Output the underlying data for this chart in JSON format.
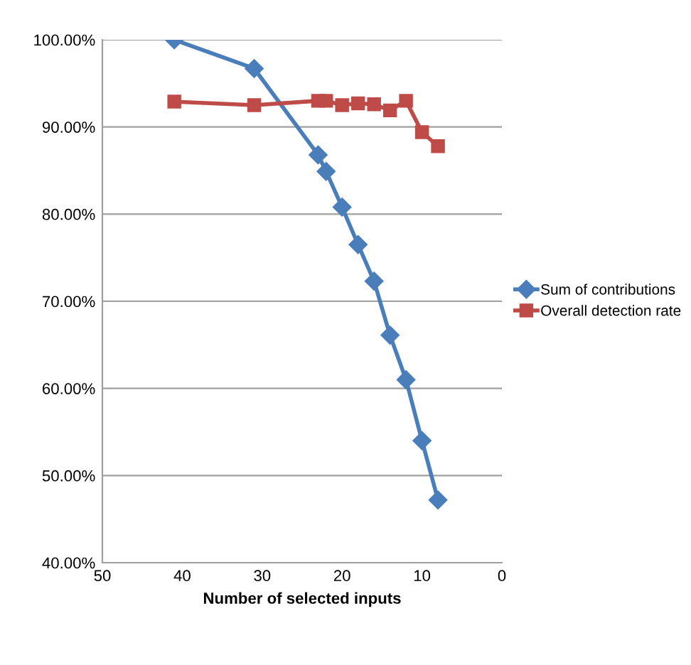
{
  "chart_data": {
    "type": "line",
    "xlabel": "Number of selected inputs",
    "xlim": [
      50,
      0
    ],
    "xticks": [
      50,
      40,
      30,
      20,
      10,
      0
    ],
    "ylim": [
      40,
      100
    ],
    "yticks": [
      {
        "value": 40,
        "label": "40.00%"
      },
      {
        "value": 50,
        "label": "50.00%"
      },
      {
        "value": 60,
        "label": "60.00%"
      },
      {
        "value": 70,
        "label": "70.00%"
      },
      {
        "value": 80,
        "label": "80.00%"
      },
      {
        "value": 90,
        "label": "90.00%"
      },
      {
        "value": 100,
        "label": "100.00%"
      }
    ],
    "grid": "y",
    "legend": "right",
    "series": [
      {
        "name": "Sum of contributions",
        "color": "#4a7ebb",
        "marker": "diamond",
        "x": [
          41,
          31,
          23,
          22,
          20,
          18,
          16,
          14,
          12,
          10,
          8
        ],
        "values": [
          100,
          96.7,
          86.8,
          84.9,
          80.8,
          76.5,
          72.3,
          66.1,
          61.0,
          54.0,
          47.2
        ]
      },
      {
        "name": "Overall detection rate",
        "color": "#be4b48",
        "marker": "square",
        "x": [
          41,
          31,
          23,
          22,
          20,
          18,
          16,
          14,
          12,
          10,
          8
        ],
        "values": [
          92.9,
          92.5,
          93.0,
          93.0,
          92.5,
          92.7,
          92.6,
          91.9,
          93.0,
          89.4,
          87.8
        ]
      }
    ]
  }
}
